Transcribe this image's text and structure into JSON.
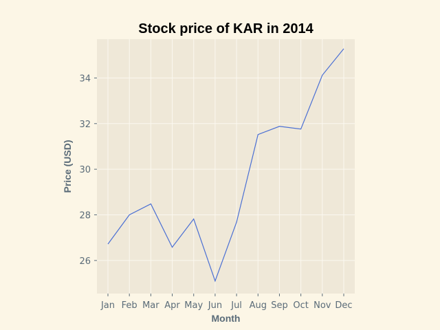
{
  "chart_data": {
    "type": "line",
    "title": "Stock price of KAR in 2014",
    "xlabel": "Month",
    "ylabel": "Price (USD)",
    "categories": [
      "Jan",
      "Feb",
      "Mar",
      "Apr",
      "May",
      "Jun",
      "Jul",
      "Aug",
      "Sep",
      "Oct",
      "Nov",
      "Dec"
    ],
    "series": [
      {
        "values": [
          26.72,
          28.0,
          28.48,
          26.58,
          27.82,
          25.1,
          27.68,
          31.52,
          31.88,
          31.76,
          34.12,
          35.28
        ]
      }
    ],
    "ylim": [
      24.55,
      35.7
    ],
    "yticks": [
      26,
      28,
      30,
      32,
      34
    ],
    "grid": true,
    "legend": "none",
    "colors": {
      "plot_background": "#efe8d8",
      "page_background": "#fcf6e6",
      "grid": "#fbf8f0",
      "line": "#4a6fd4",
      "text": "#5a6b78"
    }
  }
}
